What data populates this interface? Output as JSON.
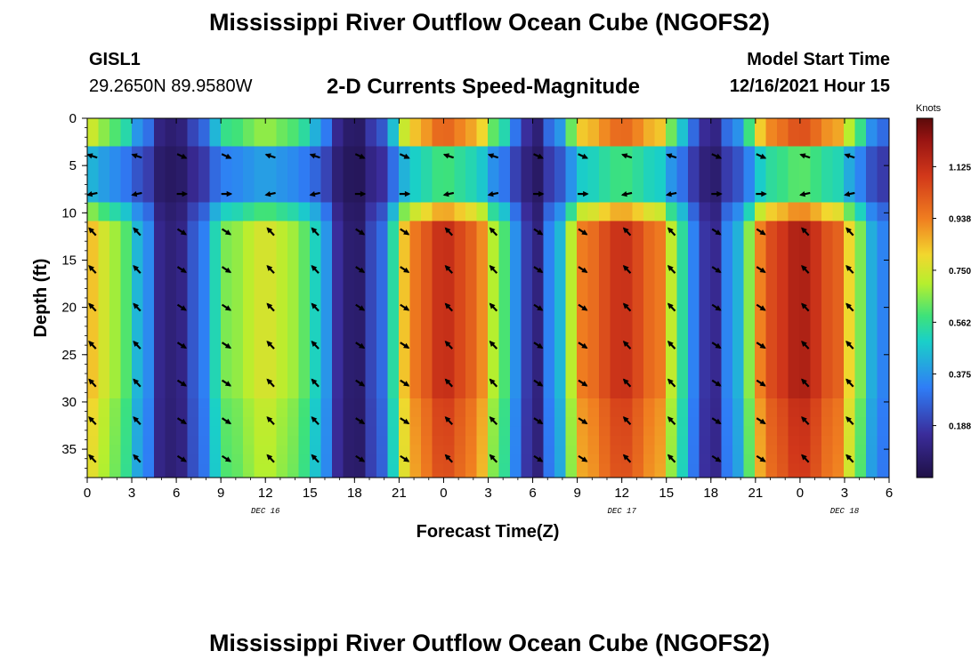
{
  "header": {
    "title": "Mississippi River Outflow Ocean Cube (NGOFS2)",
    "station_id": "GISL1",
    "station_coords": "29.2650N  89.9580W",
    "chart_subtitle": "2-D Currents Speed-Magnitude",
    "model_start_label": "Model Start Time",
    "model_start_value": "12/16/2021 Hour 15"
  },
  "footer": {
    "title": "Mississippi River Outflow Ocean Cube (NGOFS2)"
  },
  "chart_data": {
    "type": "heatmap",
    "title": "2-D Currents Speed-Magnitude",
    "xlabel": "Forecast Time(Z)",
    "ylabel": "Depth (ft)",
    "x_unit": "forecast hour from Dec 16 00Z",
    "xlim": [
      0,
      54
    ],
    "ylim": [
      38,
      0
    ],
    "x_tick_values": [
      0,
      3,
      6,
      9,
      12,
      15,
      18,
      21,
      24,
      27,
      30,
      33,
      36,
      39,
      42,
      45,
      48,
      51,
      54
    ],
    "x_tick_labels": [
      "0",
      "3",
      "6",
      "9",
      "12",
      "15",
      "18",
      "21",
      "0",
      "3",
      "6",
      "9",
      "12",
      "15",
      "18",
      "21",
      "0",
      "3",
      "6"
    ],
    "y_tick_values": [
      0,
      5,
      10,
      15,
      20,
      25,
      30,
      35
    ],
    "y_tick_labels": [
      "0",
      "5",
      "10",
      "15",
      "20",
      "25",
      "30",
      "35"
    ],
    "date_labels": [
      {
        "x": 12,
        "text": "DEC 16"
      },
      {
        "x": 36,
        "text": "DEC 17"
      },
      {
        "x": 51,
        "text": "DEC 18"
      }
    ],
    "colorbar": {
      "unit": "Knots",
      "min": 0,
      "max": 1.3,
      "ticks": [
        1.125,
        0.938,
        0.75,
        0.562,
        0.375,
        0.188
      ],
      "tick_labels": [
        "1.125",
        "0.938",
        "0.750",
        "0.562",
        "0.375",
        "0.188"
      ],
      "colormap": "jet-like (dark navy to dark red)"
    },
    "speed_anchors_knots": [
      {
        "hour": 0,
        "speed": 0.85
      },
      {
        "hour": 2,
        "speed": 0.68
      },
      {
        "hour": 3.8,
        "speed": 0.4
      },
      {
        "hour": 5,
        "speed": 0.12
      },
      {
        "hour": 6,
        "speed": 0.08
      },
      {
        "hour": 7.2,
        "speed": 0.25
      },
      {
        "hour": 9.5,
        "speed": 0.65
      },
      {
        "hour": 12,
        "speed": 0.76
      },
      {
        "hour": 14,
        "speed": 0.68
      },
      {
        "hour": 15.5,
        "speed": 0.5
      },
      {
        "hour": 17,
        "speed": 0.15
      },
      {
        "hour": 18,
        "speed": 0.04
      },
      {
        "hour": 19.5,
        "speed": 0.25
      },
      {
        "hour": 22,
        "speed": 0.95
      },
      {
        "hour": 24,
        "speed": 1.13
      },
      {
        "hour": 26,
        "speed": 1.0
      },
      {
        "hour": 28,
        "speed": 0.6
      },
      {
        "hour": 29.5,
        "speed": 0.2
      },
      {
        "hour": 30,
        "speed": 0.06
      },
      {
        "hour": 31.5,
        "speed": 0.4
      },
      {
        "hour": 33.5,
        "speed": 0.95
      },
      {
        "hour": 36,
        "speed": 1.12
      },
      {
        "hour": 38.5,
        "speed": 0.95
      },
      {
        "hour": 40,
        "speed": 0.55
      },
      {
        "hour": 41.5,
        "speed": 0.18
      },
      {
        "hour": 42,
        "speed": 0.1
      },
      {
        "hour": 43.5,
        "speed": 0.4
      },
      {
        "hour": 46,
        "speed": 1.05
      },
      {
        "hour": 48,
        "speed": 1.18
      },
      {
        "hour": 50.5,
        "speed": 1.0
      },
      {
        "hour": 52,
        "speed": 0.65
      },
      {
        "hour": 53,
        "speed": 0.4
      },
      {
        "hour": 54,
        "speed": 0.3
      }
    ],
    "arrow_depths_ft": [
      0,
      4,
      8,
      12,
      16,
      20,
      24,
      28,
      32,
      36
    ],
    "arrow_hours": [
      0,
      3,
      6,
      9,
      12,
      15,
      18,
      21,
      24,
      27,
      30,
      33,
      36,
      39,
      42,
      45,
      48,
      51
    ],
    "arrow_directions": "flood phases point north-west (up-left), ebb phases point south-east (down-right); near-surface arrows turn to east/north-east"
  }
}
